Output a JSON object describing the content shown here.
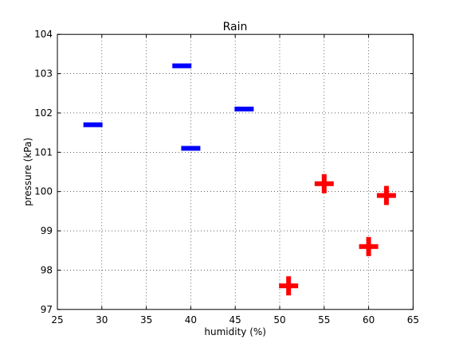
{
  "chart_data": {
    "type": "scatter",
    "title": "Rain",
    "xlabel": "humidity (%)",
    "ylabel": "pressure (kPa)",
    "xlim": [
      25,
      65
    ],
    "ylim": [
      97,
      104
    ],
    "xticks": [
      "25",
      "30",
      "35",
      "40",
      "45",
      "50",
      "55",
      "60",
      "65"
    ],
    "yticks": [
      "97",
      "98",
      "99",
      "100",
      "101",
      "102",
      "103",
      "104"
    ],
    "grid": true,
    "series": [
      {
        "marker": "_",
        "color": "#0000ff",
        "x": [
          29,
          39,
          40,
          46
        ],
        "y": [
          101.7,
          103.2,
          101.1,
          102.1
        ]
      },
      {
        "marker": "+",
        "color": "#ff0000",
        "x": [
          51,
          55,
          60,
          62
        ],
        "y": [
          97.6,
          100.2,
          98.6,
          99.9
        ]
      }
    ]
  }
}
